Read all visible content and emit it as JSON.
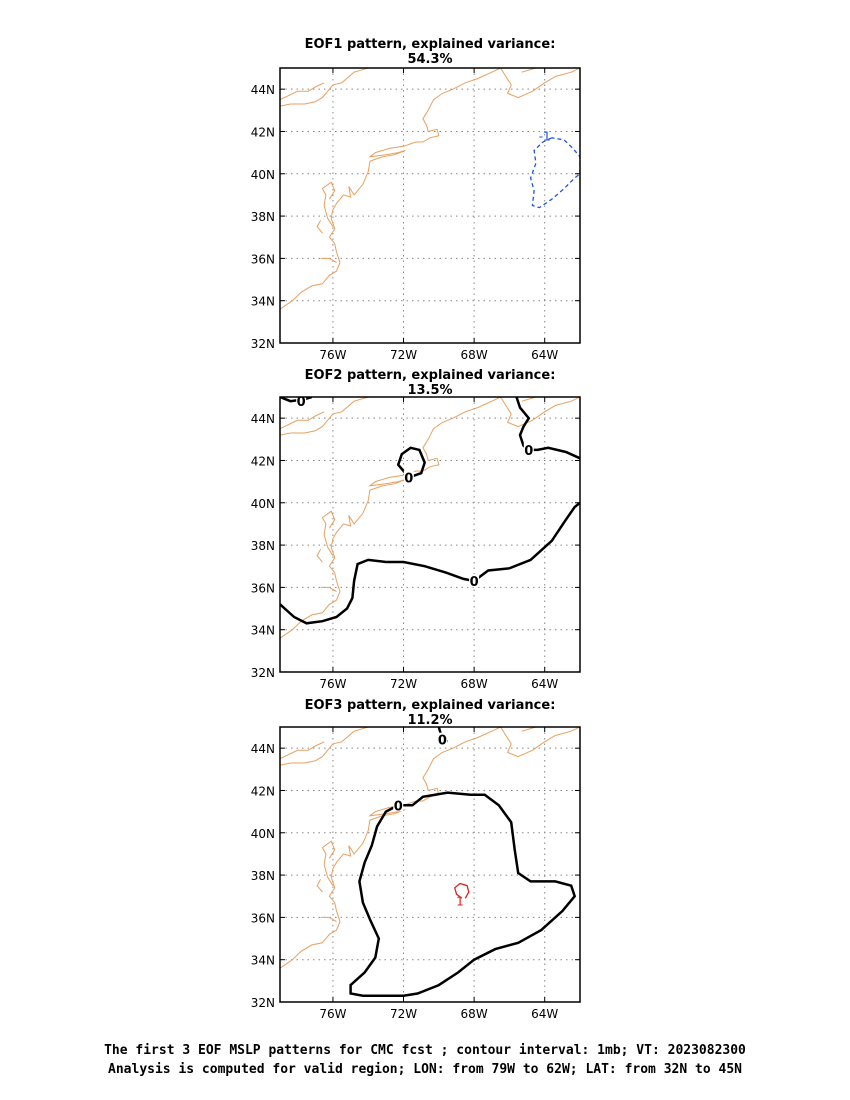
{
  "panels": [
    {
      "title": "EOF1 pattern, explained variance: 54.3%",
      "contours": [
        {
          "type": "negative",
          "color": "#2255dd",
          "label": "-1",
          "label_lonlat": [
            -64.0,
            41.8
          ],
          "points": [
            [
              -63.6,
              41.7
            ],
            [
              -64.1,
              41.5
            ],
            [
              -64.6,
              41.1
            ],
            [
              -64.5,
              40.5
            ],
            [
              -64.8,
              39.8
            ],
            [
              -64.6,
              39.2
            ],
            [
              -64.7,
              38.5
            ],
            [
              -64.3,
              38.4
            ],
            [
              -63.6,
              38.8
            ],
            [
              -62.9,
              39.3
            ],
            [
              -62.3,
              39.8
            ],
            [
              -62.0,
              40.0
            ],
            [
              -62.0,
              40.8
            ],
            [
              -62.4,
              41.2
            ],
            [
              -62.9,
              41.6
            ],
            [
              -63.6,
              41.7
            ]
          ]
        }
      ]
    },
    {
      "title": "EOF2 pattern, explained variance: 13.5%",
      "contours": [
        {
          "type": "zero",
          "color": "#000000",
          "label": "0",
          "label_lonlat": [
            -68.0,
            36.3
          ],
          "points": [
            [
              -79.0,
              35.2
            ],
            [
              -78.2,
              34.6
            ],
            [
              -77.5,
              34.3
            ],
            [
              -76.6,
              34.4
            ],
            [
              -75.8,
              34.6
            ],
            [
              -75.2,
              35.0
            ],
            [
              -74.9,
              35.5
            ],
            [
              -74.8,
              36.3
            ],
            [
              -74.6,
              37.1
            ],
            [
              -74.0,
              37.3
            ],
            [
              -73.0,
              37.2
            ],
            [
              -72.0,
              37.2
            ],
            [
              -70.8,
              37.0
            ],
            [
              -69.6,
              36.7
            ],
            [
              -68.6,
              36.4
            ],
            [
              -68.0,
              36.3
            ],
            [
              -67.2,
              36.8
            ],
            [
              -66.0,
              36.9
            ],
            [
              -64.8,
              37.3
            ],
            [
              -63.6,
              38.2
            ],
            [
              -62.8,
              39.2
            ],
            [
              -62.3,
              39.8
            ],
            [
              -62.0,
              40.0
            ]
          ]
        },
        {
          "type": "zero",
          "color": "#000000",
          "label": "0",
          "label_lonlat": [
            -71.7,
            41.2
          ],
          "points": [
            [
              -71.7,
              41.2
            ],
            [
              -71.0,
              41.4
            ],
            [
              -70.8,
              41.9
            ],
            [
              -71.1,
              42.5
            ],
            [
              -71.6,
              42.6
            ],
            [
              -72.1,
              42.3
            ],
            [
              -72.3,
              41.8
            ],
            [
              -71.9,
              41.4
            ],
            [
              -71.7,
              41.2
            ]
          ]
        },
        {
          "type": "zero",
          "color": "#000000",
          "label": "0",
          "label_lonlat": [
            -64.9,
            42.5
          ],
          "points": [
            [
              -65.6,
              45.0
            ],
            [
              -65.4,
              44.5
            ],
            [
              -64.9,
              44.0
            ],
            [
              -65.2,
              43.6
            ],
            [
              -65.4,
              43.2
            ],
            [
              -65.2,
              42.7
            ],
            [
              -64.9,
              42.5
            ],
            [
              -64.4,
              42.5
            ],
            [
              -63.8,
              42.6
            ],
            [
              -62.8,
              42.4
            ],
            [
              -62.0,
              42.1
            ]
          ]
        },
        {
          "type": "zero",
          "color": "#000000",
          "label": "0",
          "label_lonlat": [
            -77.8,
            44.8
          ],
          "points": [
            [
              -79.0,
              45.0
            ],
            [
              -78.4,
              44.8
            ],
            [
              -77.6,
              44.9
            ],
            [
              -77.2,
              45.0
            ]
          ]
        }
      ]
    },
    {
      "title": "EOF3 pattern, explained variance: 11.2%",
      "contours": [
        {
          "type": "zero",
          "color": "#000000",
          "label": "0",
          "label_lonlat": [
            -72.3,
            41.3
          ],
          "points": [
            [
              -72.3,
              41.3
            ],
            [
              -73.0,
              41.0
            ],
            [
              -73.5,
              40.3
            ],
            [
              -73.8,
              39.4
            ],
            [
              -74.2,
              38.6
            ],
            [
              -74.5,
              37.7
            ],
            [
              -74.3,
              36.7
            ],
            [
              -73.9,
              35.9
            ],
            [
              -73.4,
              35.0
            ],
            [
              -73.6,
              34.1
            ],
            [
              -74.2,
              33.4
            ],
            [
              -75.0,
              32.8
            ],
            [
              -75.0,
              32.4
            ],
            [
              -74.3,
              32.3
            ],
            [
              -73.3,
              32.3
            ],
            [
              -72.0,
              32.3
            ],
            [
              -71.2,
              32.4
            ],
            [
              -70.0,
              32.8
            ],
            [
              -68.9,
              33.4
            ],
            [
              -68.0,
              34.0
            ],
            [
              -66.8,
              34.5
            ],
            [
              -65.5,
              34.8
            ],
            [
              -64.2,
              35.4
            ],
            [
              -63.0,
              36.3
            ],
            [
              -62.3,
              37.0
            ],
            [
              -62.5,
              37.5
            ],
            [
              -63.4,
              37.7
            ],
            [
              -64.8,
              37.7
            ],
            [
              -65.5,
              38.1
            ],
            [
              -65.7,
              39.2
            ],
            [
              -65.9,
              40.5
            ],
            [
              -66.6,
              41.3
            ],
            [
              -67.4,
              41.8
            ],
            [
              -68.2,
              41.8
            ],
            [
              -69.5,
              41.9
            ],
            [
              -70.9,
              41.7
            ],
            [
              -71.5,
              41.3
            ],
            [
              -72.3,
              41.3
            ]
          ]
        },
        {
          "type": "zero",
          "color": "#000000",
          "label": "0",
          "label_lonlat": [
            -69.8,
            44.4
          ],
          "points": [
            [
              -70.0,
              45.0
            ],
            [
              -69.9,
              44.7
            ],
            [
              -69.8,
              44.4
            ],
            [
              -69.5,
              44.3
            ]
          ]
        },
        {
          "type": "positive",
          "color": "#dd2222",
          "label": "1",
          "label_lonlat": [
            -68.8,
            36.8
          ],
          "points": [
            [
              -68.7,
              36.9
            ],
            [
              -69.0,
              37.1
            ],
            [
              -69.1,
              37.4
            ],
            [
              -68.8,
              37.6
            ],
            [
              -68.4,
              37.5
            ],
            [
              -68.3,
              37.2
            ],
            [
              -68.5,
              36.9
            ]
          ]
        }
      ]
    }
  ],
  "map": {
    "lon_range": [
      -79,
      -62
    ],
    "lat_range": [
      32,
      45
    ],
    "lon_ticks": [
      -76,
      -72,
      -68,
      -64
    ],
    "lat_ticks": [
      32,
      34,
      36,
      38,
      40,
      42,
      44
    ],
    "lon_tick_labels": [
      "76W",
      "72W",
      "68W",
      "64W"
    ],
    "lat_tick_labels": [
      "32N",
      "34N",
      "36N",
      "38N",
      "40N",
      "42N",
      "44N"
    ],
    "coast_color": "#e8a060",
    "grid": "dotted",
    "coastline": [
      [
        [
          -79.0,
          43.2
        ],
        [
          -78.4,
          43.3
        ],
        [
          -77.6,
          43.3
        ],
        [
          -77.0,
          43.4
        ],
        [
          -76.6,
          43.6
        ],
        [
          -76.2,
          44.0
        ],
        [
          -76.0,
          44.2
        ],
        [
          -75.5,
          44.3
        ],
        [
          -74.8,
          44.8
        ],
        [
          -74.0,
          45.0
        ]
      ],
      [
        [
          -79.0,
          43.5
        ],
        [
          -78.0,
          43.9
        ],
        [
          -77.4,
          43.9
        ],
        [
          -77.0,
          44.1
        ],
        [
          -76.5,
          44.3
        ]
      ],
      [
        [
          -79.0,
          33.6
        ],
        [
          -78.3,
          34.0
        ],
        [
          -77.8,
          34.4
        ],
        [
          -77.2,
          34.7
        ],
        [
          -76.6,
          34.8
        ],
        [
          -76.2,
          35.2
        ],
        [
          -75.8,
          35.4
        ],
        [
          -75.6,
          35.8
        ],
        [
          -75.8,
          36.3
        ],
        [
          -75.9,
          36.7
        ],
        [
          -76.2,
          37.0
        ],
        [
          -75.9,
          37.4
        ],
        [
          -76.1,
          37.9
        ],
        [
          -76.0,
          38.3
        ],
        [
          -75.8,
          38.6
        ],
        [
          -75.4,
          39.0
        ],
        [
          -75.0,
          38.9
        ],
        [
          -75.1,
          39.4
        ],
        [
          -74.8,
          39.0
        ],
        [
          -74.3,
          39.5
        ],
        [
          -74.0,
          40.1
        ],
        [
          -73.9,
          40.6
        ],
        [
          -73.2,
          40.8
        ],
        [
          -72.5,
          40.9
        ],
        [
          -71.9,
          41.1
        ],
        [
          -72.3,
          41.0
        ],
        [
          -73.0,
          40.9
        ],
        [
          -73.9,
          40.8
        ],
        [
          -73.6,
          41.0
        ],
        [
          -72.8,
          41.2
        ],
        [
          -72.0,
          41.3
        ],
        [
          -71.3,
          41.5
        ],
        [
          -70.9,
          41.5
        ],
        [
          -70.5,
          41.7
        ],
        [
          -70.0,
          41.8
        ],
        [
          -70.1,
          42.1
        ],
        [
          -70.6,
          42.0
        ],
        [
          -70.7,
          42.3
        ],
        [
          -70.9,
          42.6
        ],
        [
          -70.6,
          43.0
        ],
        [
          -70.3,
          43.5
        ],
        [
          -69.8,
          43.8
        ],
        [
          -69.2,
          44.0
        ],
        [
          -68.5,
          44.3
        ],
        [
          -67.8,
          44.5
        ],
        [
          -67.0,
          44.8
        ],
        [
          -66.5,
          45.0
        ]
      ],
      [
        [
          -76.0,
          37.5
        ],
        [
          -76.3,
          37.9
        ],
        [
          -76.5,
          38.5
        ],
        [
          -76.4,
          39.0
        ],
        [
          -76.6,
          39.3
        ],
        [
          -76.1,
          39.6
        ],
        [
          -75.9,
          39.2
        ],
        [
          -76.2,
          38.8
        ]
      ],
      [
        [
          -76.6,
          37.2
        ],
        [
          -76.9,
          37.5
        ],
        [
          -76.7,
          37.8
        ]
      ],
      [
        [
          -76.7,
          36.0
        ],
        [
          -76.2,
          36.0
        ],
        [
          -75.8,
          35.8
        ]
      ],
      [
        [
          -66.5,
          45.0
        ],
        [
          -66.2,
          44.6
        ],
        [
          -65.9,
          44.2
        ],
        [
          -66.1,
          43.8
        ],
        [
          -65.5,
          43.6
        ],
        [
          -64.7,
          43.9
        ],
        [
          -64.0,
          44.3
        ],
        [
          -63.4,
          44.6
        ],
        [
          -62.5,
          44.8
        ],
        [
          -62.0,
          45.0
        ]
      ],
      [
        [
          -64.5,
          45.0
        ],
        [
          -65.3,
          44.8
        ]
      ]
    ]
  },
  "caption": {
    "line1": "The first 3 EOF MSLP patterns for CMC fcst ; contour interval: 1mb; VT: 2023082300",
    "line2": "Analysis is computed for valid region; LON: from 79W to 62W; LAT: from 32N to 45N"
  }
}
